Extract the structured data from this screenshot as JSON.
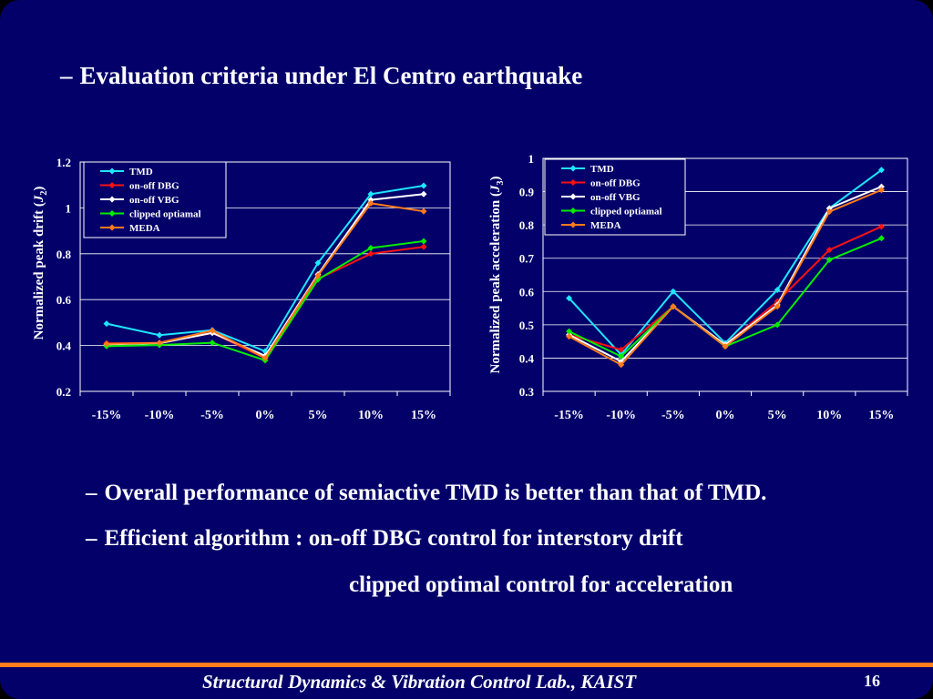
{
  "slide": {
    "title": "Evaluation criteria under El Centro earthquake",
    "bullets": [
      "Overall performance of semiactive TMD is better than that of TMD.",
      "Efficient algorithm  : on-off DBG control for interstory drift"
    ],
    "bullet_continuation": "clipped optimal control for acceleration",
    "footer": "Structural Dynamics & Vibration Control Lab., KAIST",
    "page_number": "16"
  },
  "chart_data": [
    {
      "type": "line",
      "title": "",
      "xlabel": "",
      "ylabel": "Normalized peak drift  (J2)",
      "ylabel_main": "Normalized peak drift  (",
      "ylabel_symbol": "J",
      "ylabel_sub": "2",
      "ylabel_close": ")",
      "ylim": [
        0.2,
        1.2
      ],
      "yticks": [
        "0.2",
        "0.4",
        "0.6",
        "0.8",
        "1",
        "1.2"
      ],
      "categories": [
        "-15%",
        "-10%",
        "-5%",
        "0%",
        "5%",
        "10%",
        "15%"
      ],
      "grid": true,
      "legend_position": "top-left",
      "series": [
        {
          "name": "TMD",
          "color": "#1ee6ff",
          "values": [
            0.495,
            0.445,
            0.467,
            0.375,
            0.76,
            1.06,
            1.097
          ]
        },
        {
          "name": "on-off DBG",
          "color": "#ff1111",
          "values": [
            0.41,
            0.41,
            0.455,
            0.345,
            0.69,
            0.8,
            0.83
          ]
        },
        {
          "name": "on-off VBG",
          "color": "#ffffff",
          "values": [
            0.405,
            0.41,
            0.455,
            0.355,
            0.71,
            1.035,
            1.06
          ]
        },
        {
          "name": "clipped optiamal",
          "color": "#00ee00",
          "values": [
            0.397,
            0.402,
            0.412,
            0.335,
            0.688,
            0.825,
            0.855
          ]
        },
        {
          "name": "MEDA",
          "color": "#ff7a1a",
          "values": [
            0.407,
            0.412,
            0.465,
            0.345,
            0.705,
            1.02,
            0.985
          ]
        }
      ]
    },
    {
      "type": "line",
      "title": "",
      "xlabel": "",
      "ylabel": "Normalized peak acceleration  (J3)",
      "ylabel_main": "Normalized peak acceleration  (",
      "ylabel_symbol": "J",
      "ylabel_sub": "3",
      "ylabel_close": ")",
      "ylim": [
        0.3,
        1.0
      ],
      "yticks": [
        "0.3",
        "0.4",
        "0.5",
        "0.6",
        "0.7",
        "0.8",
        "0.9",
        "1"
      ],
      "categories": [
        "-15%",
        "-10%",
        "-5%",
        "0%",
        "5%",
        "10%",
        "15%"
      ],
      "grid": true,
      "legend_position": "top-left",
      "series": [
        {
          "name": "TMD",
          "color": "#1ee6ff",
          "values": [
            0.58,
            0.41,
            0.6,
            0.445,
            0.605,
            0.85,
            0.965
          ]
        },
        {
          "name": "on-off DBG",
          "color": "#ff1111",
          "values": [
            0.47,
            0.425,
            0.555,
            0.44,
            0.57,
            0.725,
            0.795
          ]
        },
        {
          "name": "on-off VBG",
          "color": "#ffffff",
          "values": [
            0.47,
            0.39,
            0.555,
            0.44,
            0.56,
            0.85,
            0.915
          ]
        },
        {
          "name": "clipped optiamal",
          "color": "#00ee00",
          "values": [
            0.48,
            0.405,
            0.555,
            0.435,
            0.5,
            0.695,
            0.76
          ]
        },
        {
          "name": "MEDA",
          "color": "#ff7a1a",
          "values": [
            0.465,
            0.38,
            0.555,
            0.435,
            0.555,
            0.84,
            0.905
          ]
        }
      ]
    }
  ]
}
